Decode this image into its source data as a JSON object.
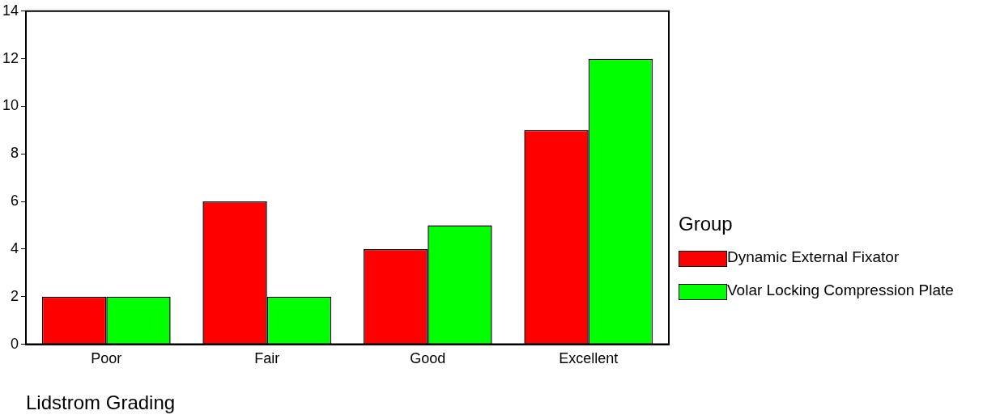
{
  "chart_data": {
    "type": "bar",
    "xlabel": "Lidstrom Grading",
    "legend_title": "Group",
    "categories": [
      "Poor",
      "Fair",
      "Good",
      "Excellent"
    ],
    "series": [
      {
        "name": "Dynamic External Fixator",
        "color": "#ff0000",
        "values": [
          2,
          6,
          4,
          9
        ]
      },
      {
        "name": "Volar Locking Compression Plate",
        "color": "#00ff00",
        "values": [
          2,
          2,
          5,
          12
        ]
      }
    ],
    "ylim": [
      0,
      14
    ],
    "yticks": [
      0,
      2,
      4,
      6,
      8,
      10,
      12,
      14
    ],
    "grid": false,
    "legend": "right"
  }
}
